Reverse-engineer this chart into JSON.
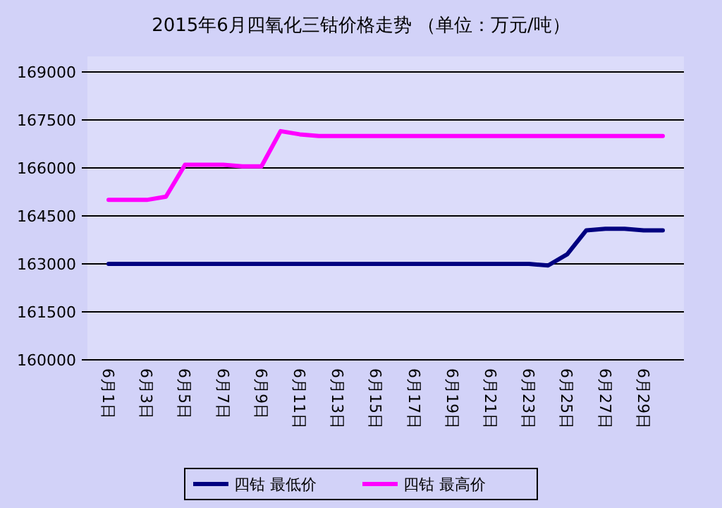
{
  "chart_data": {
    "type": "line",
    "title": "2015年6月四氧化三钴价格走势 （单位：万元/吨）",
    "categories": [
      "6月1日",
      null,
      "6月3日",
      null,
      "6月5日",
      null,
      "6月7日",
      null,
      "6月9日",
      null,
      "6月11日",
      null,
      "6月13日",
      null,
      "6月15日",
      null,
      "6月17日",
      null,
      "6月19日",
      null,
      "6月21日",
      null,
      "6月23日",
      null,
      "6月25日",
      null,
      "6月27日",
      null,
      "6月29日",
      null
    ],
    "series": [
      {
        "name": "四钴 最低价",
        "color": "#000080",
        "values": [
          163000,
          163000,
          163000,
          163000,
          163000,
          163000,
          163000,
          163000,
          163000,
          163000,
          163000,
          163000,
          163000,
          163000,
          163000,
          163000,
          163000,
          163000,
          163000,
          163000,
          163000,
          163000,
          163000,
          162950,
          163300,
          164050,
          164100,
          164100,
          164050,
          164050
        ]
      },
      {
        "name": "四钴 最高价",
        "color": "#ff00ff",
        "values": [
          165000,
          165000,
          165000,
          165100,
          166100,
          166100,
          166100,
          166050,
          166050,
          167150,
          167050,
          167000,
          167000,
          167000,
          167000,
          167000,
          167000,
          167000,
          167000,
          167000,
          167000,
          167000,
          167000,
          167000,
          167000,
          167000,
          167000,
          167000,
          167000,
          167000
        ]
      }
    ],
    "ylim": [
      160000,
      169000
    ],
    "yticks": [
      160000,
      161500,
      163000,
      164500,
      166000,
      167500,
      169000
    ],
    "grid": "y",
    "legend": "bottom",
    "marker": "none",
    "line_style": "solid"
  }
}
